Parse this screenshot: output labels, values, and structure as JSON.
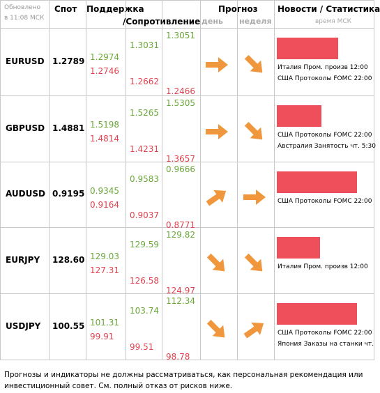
{
  "header": {
    "updated_1": "Обновлено",
    "updated_2": "в 11:08 МСК",
    "spot": "Спот",
    "support": "Поддержка",
    "resistance": "/Сопротивление",
    "forecast": "Прогноз",
    "day": "день",
    "week": "неделя",
    "news": "Новости / Статистика",
    "time_note": "время МСК"
  },
  "rows": [
    {
      "pair": "EURUSD",
      "spot": "1.2789",
      "levels": [
        [
          "1.2974",
          "1.2746"
        ],
        [
          "1.3031",
          "1.2662"
        ],
        [
          "1.3051",
          "1.2466"
        ]
      ],
      "news": [
        "Италия Пром. произв 12:00",
        "США Протоколы FOMC 22:00"
      ]
    },
    {
      "pair": "GBPUSD",
      "spot": "1.4881",
      "levels": [
        [
          "1.5198",
          "1.4814"
        ],
        [
          "1.5265",
          "1.4231"
        ],
        [
          "1.5305",
          "1.3657"
        ]
      ],
      "news": [
        "США Протоколы FOMC 22:00",
        "Австралия Занятость чт. 5:30"
      ]
    },
    {
      "pair": "AUDUSD",
      "spot": "0.9195",
      "levels": [
        [
          "0.9345",
          "0.9164"
        ],
        [
          "0.9583",
          "0.9037"
        ],
        [
          "0.9666",
          "0.8771"
        ]
      ],
      "news": [
        "США Протоколы FOMC 22:00"
      ]
    },
    {
      "pair": "EURJPY",
      "spot": "128.60",
      "levels": [
        [
          "129.03",
          "127.31"
        ],
        [
          "129.59",
          "126.58"
        ],
        [
          "129.82",
          "124.97"
        ]
      ],
      "news": [
        "Италия Пром. произв 12:00"
      ]
    },
    {
      "pair": "USDJPY",
      "spot": "100.55",
      "levels": [
        [
          "101.31",
          "99.91"
        ],
        [
          "103.74",
          "99.51"
        ],
        [
          "112.34",
          "98.78"
        ]
      ],
      "news": [
        "США Протоколы FOMC 22:00",
        "Япония Заказы на станки чт."
      ]
    }
  ],
  "footer": "Прогнозы и индикаторы не должны рассматриваться, как персональная рекомендация или инвестиционный совет. См. полный отказ от рисков ниже."
}
